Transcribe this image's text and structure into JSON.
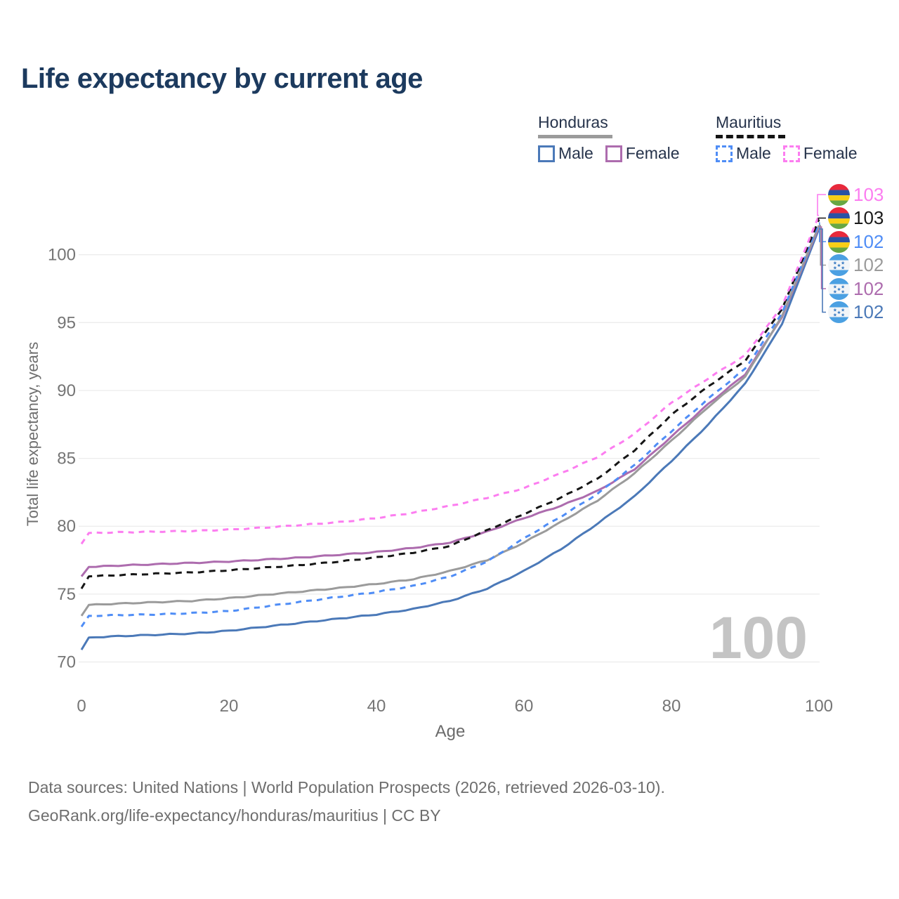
{
  "title": "Life expectancy by current age",
  "legend": {
    "groups": [
      {
        "name": "Honduras",
        "line_style": "solid",
        "line_color": "#9b9b9b",
        "items": [
          {
            "label": "Male",
            "color": "#4b79b8",
            "dashed": false
          },
          {
            "label": "Female",
            "color": "#ad6cae",
            "dashed": false
          }
        ]
      },
      {
        "name": "Mauritius",
        "line_style": "dashed",
        "line_color": "#141414",
        "items": [
          {
            "label": "Male",
            "color": "#4f8df6",
            "dashed": true
          },
          {
            "label": "Female",
            "color": "#fc7df0",
            "dashed": true
          }
        ]
      }
    ]
  },
  "chart_data": {
    "type": "line",
    "title": "Life expectancy by current age",
    "xlabel": "Age",
    "ylabel": "Total life expectancy, years",
    "x_ticks": [
      0,
      20,
      40,
      60,
      80,
      100
    ],
    "y_ticks": [
      70,
      75,
      80,
      85,
      90,
      95,
      100
    ],
    "xlim": [
      0,
      100
    ],
    "ylim": [
      70,
      100
    ],
    "grid": "horizontal",
    "watermark": "100",
    "ages": [
      0,
      1,
      5,
      10,
      15,
      20,
      25,
      30,
      35,
      40,
      45,
      50,
      55,
      60,
      65,
      70,
      75,
      80,
      85,
      90,
      95,
      100
    ],
    "series": [
      {
        "name": "Mauritius Female",
        "country": "Mauritius",
        "sex": "Female",
        "color": "#fc7df0",
        "dash": "8 7",
        "end_label": "103",
        "values": [
          78.7,
          79.5,
          79.55,
          79.6,
          79.65,
          79.75,
          79.9,
          80.1,
          80.3,
          80.6,
          81.0,
          81.5,
          82.1,
          82.8,
          83.9,
          85.1,
          86.8,
          89.1,
          90.9,
          92.6,
          96.2,
          102.9
        ]
      },
      {
        "name": "Mauritius Both sexes",
        "country": "Mauritius",
        "sex": "Both",
        "color": "#161616",
        "dash": "9 7",
        "end_label": "103",
        "values": [
          75.4,
          76.3,
          76.4,
          76.5,
          76.6,
          76.75,
          76.95,
          77.15,
          77.4,
          77.7,
          78.05,
          78.55,
          79.7,
          80.9,
          82.1,
          83.5,
          85.6,
          88.2,
          90.3,
          92.2,
          96.0,
          102.6
        ]
      },
      {
        "name": "Mauritius Male",
        "country": "Mauritius",
        "sex": "Male",
        "color": "#4f8df6",
        "dash": "8 7",
        "end_label": "102",
        "values": [
          72.6,
          73.4,
          73.45,
          73.5,
          73.6,
          73.75,
          74.1,
          74.45,
          74.8,
          75.15,
          75.6,
          76.3,
          77.4,
          79.1,
          80.7,
          82.4,
          84.5,
          87.0,
          89.4,
          91.6,
          95.7,
          102.35
        ]
      },
      {
        "name": "Honduras Both sexes",
        "country": "Honduras",
        "sex": "Both",
        "color": "#9b9b9b",
        "dash": null,
        "end_label": "102",
        "values": [
          73.4,
          74.2,
          74.3,
          74.4,
          74.5,
          74.7,
          74.95,
          75.2,
          75.45,
          75.75,
          76.1,
          76.7,
          77.5,
          78.8,
          80.3,
          81.9,
          83.9,
          86.3,
          88.8,
          91.0,
          95.5,
          102.15
        ]
      },
      {
        "name": "Honduras Female",
        "country": "Honduras",
        "sex": "Female",
        "color": "#ad6cae",
        "dash": null,
        "end_label": "102",
        "values": [
          76.3,
          77.0,
          77.1,
          77.2,
          77.3,
          77.4,
          77.55,
          77.7,
          77.9,
          78.1,
          78.4,
          78.8,
          79.6,
          80.6,
          81.5,
          82.6,
          84.2,
          86.6,
          89.0,
          91.2,
          95.4,
          102.05
        ]
      },
      {
        "name": "Honduras Male",
        "country": "Honduras",
        "sex": "Male",
        "color": "#4b79b8",
        "dash": null,
        "end_label": "102",
        "values": [
          70.9,
          71.8,
          71.9,
          72.0,
          72.1,
          72.3,
          72.6,
          72.9,
          73.2,
          73.5,
          73.9,
          74.5,
          75.4,
          76.7,
          78.3,
          80.2,
          82.2,
          84.8,
          87.5,
          90.5,
          94.9,
          101.9
        ]
      }
    ],
    "flag_colors": {
      "mauritius": {
        "red": "#e8293c",
        "blue": "#2a52a4",
        "yellow": "#f7ce17",
        "green": "#67a743"
      },
      "honduras": {
        "blue": "#4ba0e2",
        "white": "#f2f5f8",
        "star": "#3f7fc4"
      }
    },
    "style": {
      "grid_color": "#ececec",
      "tick_color": "#757575",
      "title_color": "#1c3a5e",
      "legend_text_color": "#26334b",
      "watermark_color": "#c4c4c4"
    }
  },
  "footer": {
    "line1": "Data sources: United Nations | World Population Prospects (2026, retrieved 2026-03-10).",
    "line2": "GeoRank.org/life-expectancy/honduras/mauritius | CC BY"
  }
}
